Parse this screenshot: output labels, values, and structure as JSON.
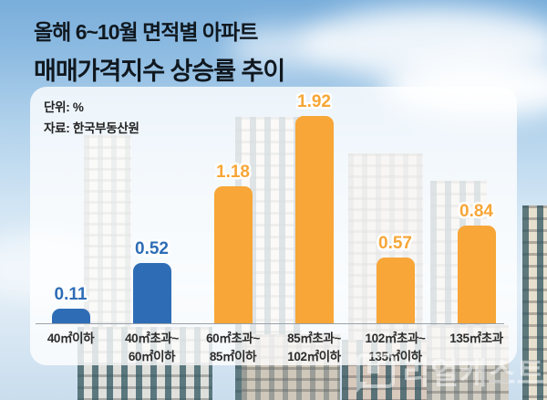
{
  "title": {
    "line1": "올해 6~10월 면적별 아파트",
    "line2": "매매가격지수 상승률 추이"
  },
  "meta": {
    "unit_label": "단위: %",
    "source_label": "자료: 한국부동산원"
  },
  "watermark": {
    "text": "리얼캐스트"
  },
  "colors": {
    "blue": "#2e6db6",
    "orange": "#f7a637"
  },
  "chart_data": {
    "type": "bar",
    "title": "올해 6~10월 면적별 아파트 매매가격지수 상승률 추이",
    "unit": "%",
    "source": "한국부동산원",
    "categories": [
      "40㎡이하",
      "40㎡초과~60㎡이하",
      "60㎡초과~85㎡이하",
      "85㎡초과~102㎡이하",
      "102㎡초과~135㎡이하",
      "135㎡초과"
    ],
    "category_lines": [
      [
        "40㎡이하",
        ""
      ],
      [
        "40㎡초과~",
        "60㎡이하"
      ],
      [
        "60㎡초과~",
        "85㎡이하"
      ],
      [
        "85㎡초과~",
        "102㎡이하"
      ],
      [
        "102㎡초과~",
        "135㎡이하"
      ],
      [
        "135㎡초과",
        ""
      ]
    ],
    "values": [
      0.11,
      0.52,
      1.18,
      1.92,
      0.57,
      0.84
    ],
    "value_labels": [
      "0.11",
      "0.52",
      "1.18",
      "1.92",
      "0.57",
      "0.84"
    ],
    "bar_colors": [
      "#2e6db6",
      "#2e6db6",
      "#f7a637",
      "#f7a637",
      "#f7a637",
      "#f7a637"
    ],
    "ylim": [
      0,
      2
    ],
    "grid": false,
    "legend": false
  }
}
